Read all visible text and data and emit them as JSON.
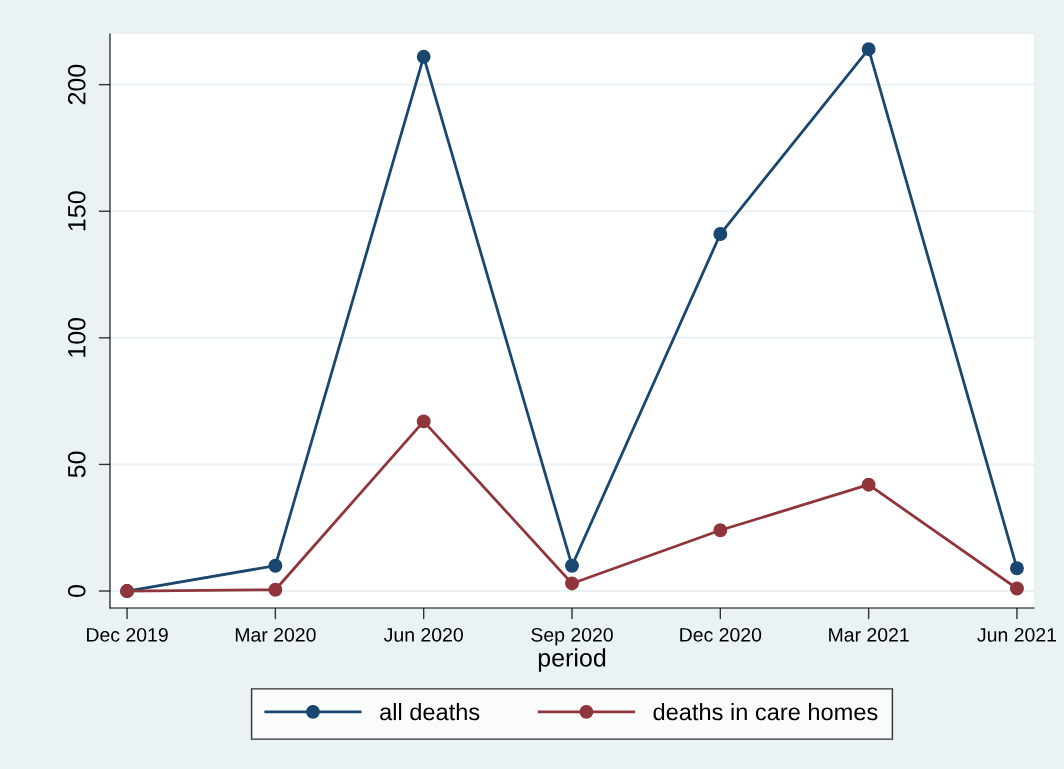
{
  "chart_data": {
    "type": "line",
    "xlabel": "period",
    "categories": [
      "Dec 2019",
      "Mar 2020",
      "Jun 2020",
      "Sep 2020",
      "Dec 2020",
      "Mar 2021",
      "Jun 2021"
    ],
    "series": [
      {
        "name": "all deaths",
        "color": "#1a476f",
        "values": [
          0,
          10,
          211,
          10,
          141,
          214,
          9
        ]
      },
      {
        "name": "deaths in care homes",
        "color": "#90353b",
        "values": [
          0,
          0.5,
          67,
          3,
          24,
          42,
          1
        ]
      }
    ],
    "ylim": [
      -6.7,
      220
    ],
    "yticks": [
      0,
      50,
      100,
      150,
      200
    ],
    "grid": "y",
    "legend": "bottom",
    "marker": "circle",
    "line_style": "solid"
  }
}
